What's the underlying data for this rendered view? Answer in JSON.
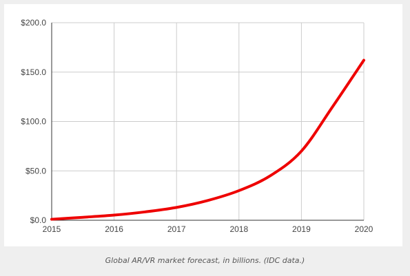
{
  "chart_data": {
    "type": "line",
    "x": [
      2015,
      2015.5,
      2016,
      2016.5,
      2017,
      2017.5,
      2018,
      2018.5,
      2019,
      2019.5,
      2020
    ],
    "series": [
      {
        "values": [
          1,
          3,
          5.2,
          8.5,
          13,
          20,
          30,
          45,
          70,
          115,
          162
        ]
      }
    ],
    "x_ticks": [
      "2015",
      "2016",
      "2017",
      "2018",
      "2019",
      "2020"
    ],
    "y_ticks": [
      "$0.0",
      "$50.0",
      "$100.0",
      "$150.0",
      "$200.0"
    ],
    "xlim": [
      2015,
      2020
    ],
    "ylim": [
      0,
      200
    ],
    "grid": true,
    "colors": {
      "line": "#ee0000",
      "grid": "#cccccc",
      "axis": "#333333"
    }
  },
  "caption": "Global AR/VR market forecast, in billions. (IDC data.)"
}
